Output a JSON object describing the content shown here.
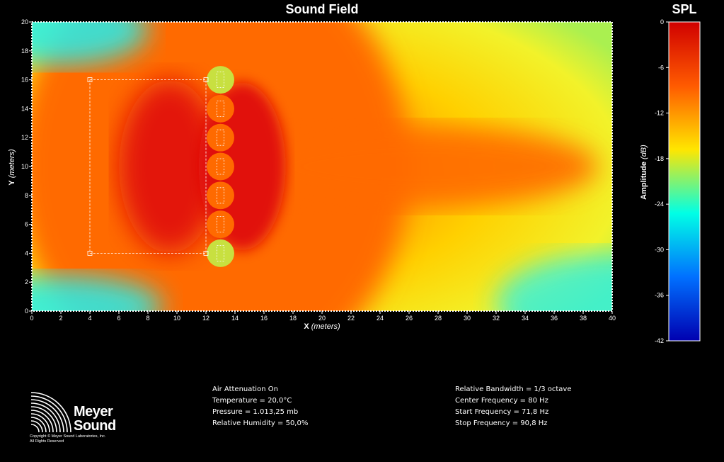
{
  "header": {
    "plot_title": "Sound Field",
    "scale_title": "SPL"
  },
  "chart_data": {
    "type": "heatmap",
    "title": "Sound Field",
    "xlabel": {
      "name": "X",
      "unit": "(meters)"
    },
    "ylabel": {
      "name": "Y",
      "unit": "(meters)"
    },
    "xlim": [
      0,
      40
    ],
    "ylim": [
      0,
      20
    ],
    "xticks": [
      "0",
      "2",
      "4",
      "6",
      "8",
      "10",
      "12",
      "14",
      "16",
      "18",
      "20",
      "22",
      "24",
      "26",
      "28",
      "30",
      "32",
      "34",
      "36",
      "38",
      "40"
    ],
    "yticks": [
      "0",
      "2",
      "4",
      "6",
      "8",
      "10",
      "12",
      "14",
      "16",
      "18",
      "20"
    ],
    "colorbar": {
      "label": {
        "name": "Amplitude",
        "unit": "(dB)"
      },
      "range": [
        -42,
        0
      ],
      "ticks": [
        "0",
        "-6",
        "-12",
        "-18",
        "-24",
        "-30",
        "-36",
        "-42"
      ],
      "colors": [
        "#d00000",
        "#ff5a00",
        "#ffe600",
        "#00ffe6",
        "#0070ff",
        "#0000b0"
      ]
    },
    "source_elements_y": [
      16,
      14,
      12,
      10,
      8,
      6,
      4
    ],
    "source_x": 13,
    "selection_rect": {
      "x": [
        4,
        12
      ],
      "y": [
        4,
        16
      ]
    },
    "field_colors": {
      "hot": "#e00808",
      "warm": "#ff6a00",
      "mid": "#ffd000",
      "yellow": "#f2f22a",
      "cool": "#aaf050",
      "cold": "#22f0f0"
    }
  },
  "air_settings": [
    "Air Attenuation On",
    "Temperature = 20,0°C",
    "Pressure = 1.013,25  mb",
    "Relative Humidity = 50,0%"
  ],
  "frequency_settings": [
    "Relative Bandwidth = 1/3 octave",
    "Center Frequency = 80 Hz",
    "Start Frequency = 71,8 Hz",
    "Stop Frequency = 90,8 Hz"
  ],
  "logo": {
    "line1": "Meyer",
    "line2": "Sound",
    "copyright": "Copyright © Meyer Sound Laboratories, Inc.",
    "rights": "All Rights Reserved"
  }
}
